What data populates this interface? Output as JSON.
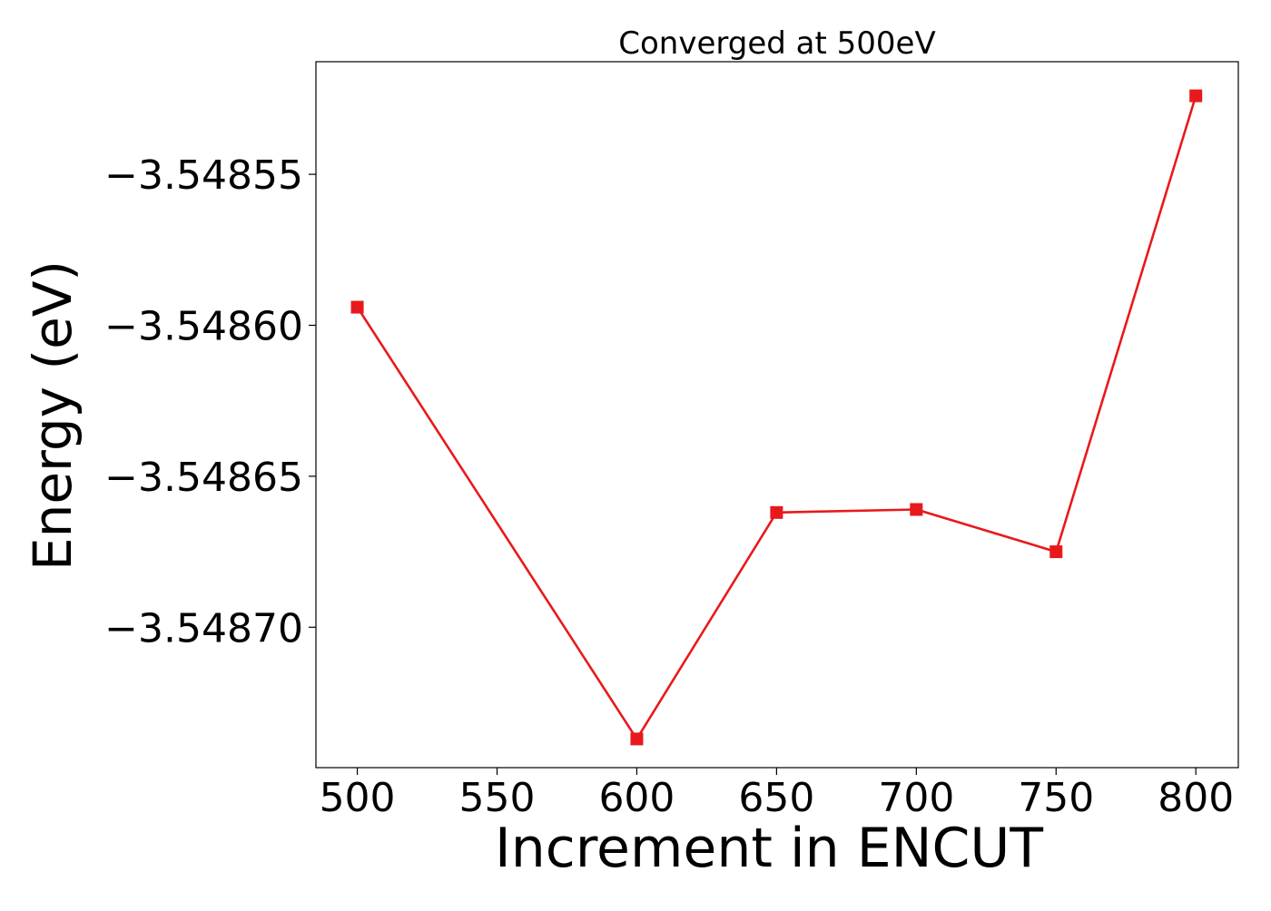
{
  "chart_data": {
    "type": "line",
    "title": "Converged at 500eV",
    "xlabel": "Increment in ENCUT",
    "ylabel": "Energy (eV)",
    "x": [
      500,
      600,
      650,
      700,
      750,
      800
    ],
    "series": [
      {
        "values": [
          -3.548594,
          -3.548737,
          -3.548662,
          -3.548661,
          -3.548675,
          -3.548524
        ],
        "color": "#e8191c",
        "marker": "square"
      }
    ],
    "x_ticks": [
      500,
      550,
      600,
      650,
      700,
      750,
      800
    ],
    "x_tick_labels": [
      "500",
      "550",
      "600",
      "650",
      "700",
      "750",
      "800"
    ],
    "y_ticks": [
      -3.54855,
      -3.5486,
      -3.54865,
      -3.5487
    ],
    "y_tick_labels": [
      "−3.54855",
      "−3.54860",
      "−3.54865",
      "−3.54870"
    ],
    "xlim": [
      485.2,
      815.2
    ],
    "ylim": [
      -3.5487465,
      -3.5485127
    ],
    "grid": false,
    "legend": "none"
  }
}
